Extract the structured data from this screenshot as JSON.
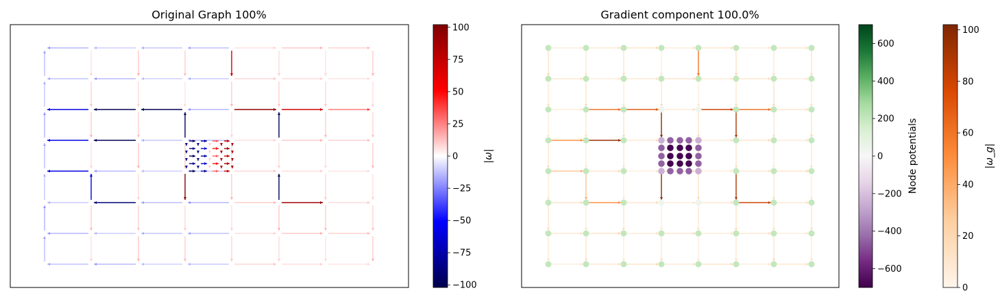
{
  "chart_data": [
    {
      "type": "network",
      "title": "Original Graph 100%",
      "grid_nodes": {
        "columns": 8,
        "rows": 8
      },
      "center_nodes": {
        "columns": 5,
        "rows": 5
      },
      "edge_value_range": [
        -102,
        102
      ],
      "colorbar": {
        "label": "|ω|",
        "colormap": "seismic",
        "range": [
          -102,
          102
        ],
        "ticks": [
          -100,
          -75,
          -50,
          -25,
          0,
          25,
          50,
          75,
          100
        ]
      },
      "strong_edges": [
        {
          "from": [
            0,
            2
          ],
          "to": [
            1,
            2
          ],
          "value": -60
        },
        {
          "from": [
            1,
            2
          ],
          "to": [
            2,
            2
          ],
          "value": -100
        },
        {
          "from": [
            2,
            2
          ],
          "to": [
            3,
            2
          ],
          "value": -100
        },
        {
          "from": [
            3,
            2
          ],
          "to": [
            3,
            3
          ],
          "value": -100
        },
        {
          "from": [
            0,
            3
          ],
          "to": [
            1,
            3
          ],
          "value": -60
        },
        {
          "from": [
            1,
            3
          ],
          "to": [
            2,
            3
          ],
          "value": -100
        },
        {
          "from": [
            0,
            4
          ],
          "to": [
            1,
            4
          ],
          "value": -60
        },
        {
          "from": [
            1,
            4
          ],
          "to": [
            1,
            5
          ],
          "value": -60
        },
        {
          "from": [
            1,
            5
          ],
          "to": [
            2,
            5
          ],
          "value": -90
        },
        {
          "from": [
            3,
            5
          ],
          "to": [
            3,
            4
          ],
          "value": -100
        },
        {
          "from": [
            4,
            6
          ],
          "to": [
            4,
            4
          ],
          "value": -100
        },
        {
          "from": [
            5,
            4
          ],
          "to": [
            5,
            5
          ],
          "value": -100
        },
        {
          "from": [
            4,
            2
          ],
          "to": [
            5,
            2
          ],
          "value": 95
        },
        {
          "from": [
            5,
            2
          ],
          "to": [
            6,
            2
          ],
          "value": 70
        },
        {
          "from": [
            4,
            3
          ],
          "to": [
            4,
            1
          ],
          "value": 100
        },
        {
          "from": [
            5,
            3
          ],
          "to": [
            5,
            2
          ],
          "value": 100
        },
        {
          "from": [
            4,
            0
          ],
          "to": [
            4,
            1
          ],
          "value": 70
        },
        {
          "from": [
            5,
            5
          ],
          "to": [
            6,
            5
          ],
          "value": 90
        },
        {
          "from": [
            6,
            2
          ],
          "to": [
            7,
            2
          ],
          "value": 40
        }
      ]
    },
    {
      "type": "network",
      "title": "Gradient component 100.0%",
      "grid_nodes": {
        "columns": 8,
        "rows": 8
      },
      "center_nodes": {
        "columns": 5,
        "rows": 5
      },
      "node_value_range": [
        -700,
        700
      ],
      "edge_value_range": [
        0,
        102
      ],
      "colorbars": [
        {
          "label": "Node potentials",
          "colormap": "PRGn",
          "range": [
            -700,
            700
          ],
          "ticks": [
            -600,
            -400,
            -200,
            0,
            200,
            400,
            600
          ]
        },
        {
          "label": "|ω_g|",
          "colormap": "Oranges",
          "range": [
            0,
            102
          ],
          "ticks": [
            0,
            20,
            40,
            60,
            80,
            100
          ]
        }
      ],
      "strong_edges": [
        {
          "from": [
            0,
            3
          ],
          "to": [
            1,
            3
          ],
          "value": 50
        },
        {
          "from": [
            1,
            3
          ],
          "to": [
            2,
            3
          ],
          "value": 95
        },
        {
          "from": [
            1,
            2
          ],
          "to": [
            2,
            2
          ],
          "value": 60
        },
        {
          "from": [
            2,
            2
          ],
          "to": [
            3,
            2
          ],
          "value": 70
        },
        {
          "from": [
            3,
            2
          ],
          "to": [
            3,
            3
          ],
          "value": 100
        },
        {
          "from": [
            3,
            5
          ],
          "to": [
            3,
            4
          ],
          "value": 100
        },
        {
          "from": [
            4,
            6
          ],
          "to": [
            4,
            4
          ],
          "value": 100
        },
        {
          "from": [
            4,
            3
          ],
          "to": [
            4,
            1
          ],
          "value": 100
        },
        {
          "from": [
            5,
            3
          ],
          "to": [
            5,
            2
          ],
          "value": 90
        },
        {
          "from": [
            4,
            2
          ],
          "to": [
            5,
            2
          ],
          "value": 80
        },
        {
          "from": [
            5,
            2
          ],
          "to": [
            6,
            2
          ],
          "value": 60
        },
        {
          "from": [
            5,
            4
          ],
          "to": [
            5,
            5
          ],
          "value": 90
        },
        {
          "from": [
            5,
            5
          ],
          "to": [
            6,
            5
          ],
          "value": 80
        },
        {
          "from": [
            4,
            0
          ],
          "to": [
            4,
            1
          ],
          "value": 60
        },
        {
          "from": [
            1,
            5
          ],
          "to": [
            2,
            5
          ],
          "value": 50
        },
        {
          "from": [
            0,
            4
          ],
          "to": [
            1,
            4
          ],
          "value": 40
        },
        {
          "from": [
            1,
            4
          ],
          "to": [
            1,
            5
          ],
          "value": 40
        }
      ]
    }
  ]
}
